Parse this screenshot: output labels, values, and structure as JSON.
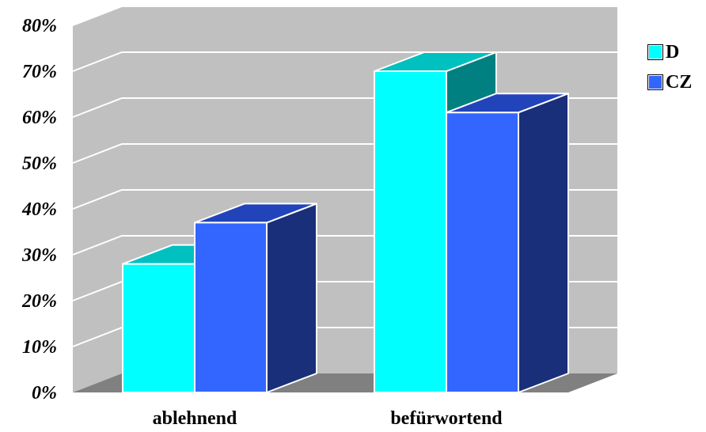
{
  "chart_data": {
    "type": "bar",
    "categories": [
      "ablehnend",
      "befürwortend"
    ],
    "series": [
      {
        "name": "D",
        "values": [
          28,
          70
        ],
        "color": "#00FFFF",
        "top_color": "#00C0C0",
        "side_color": "#008080"
      },
      {
        "name": "CZ",
        "values": [
          37,
          61
        ],
        "color": "#3366FF",
        "top_color": "#2244BB",
        "side_color": "#1A2F7A"
      }
    ],
    "ylim": [
      0,
      80
    ],
    "yticks": [
      "0%",
      "10%",
      "20%",
      "30%",
      "40%",
      "50%",
      "60%",
      "70%",
      "80%"
    ],
    "grid": true,
    "legend_position": "right",
    "wall_color": "#C0C0C0",
    "floor_color": "#808080",
    "gridline_color": "#FFFFFF"
  }
}
